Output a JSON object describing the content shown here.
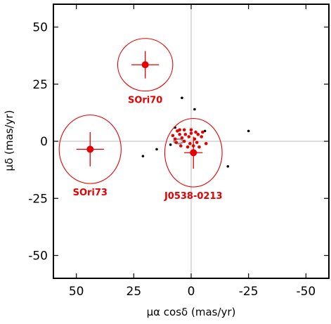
{
  "chart_data": {
    "type": "scatter",
    "title": "",
    "xlabel": "μα cosδ (mas/yr)",
    "ylabel": "μδ (mas/yr)",
    "xlim": [
      60,
      -60
    ],
    "ylim": [
      -60,
      60
    ],
    "x_inverted": true,
    "xticks": [
      50,
      25,
      0,
      -25,
      -50
    ],
    "yticks": [
      50,
      25,
      0,
      -25,
      -50
    ],
    "xtick_labels": [
      "50",
      "25",
      "0",
      "-25",
      "-50"
    ],
    "ytick_labels": [
      "50",
      "25",
      "0",
      "-25",
      "-50"
    ],
    "grid": false,
    "reference_lines": {
      "x": 0,
      "y": 0,
      "color": "#bbbbbb"
    },
    "colors": {
      "highlight": "#e60000",
      "background_points": "#000000",
      "ellipse": "#e60000",
      "small_ellipse": "#999999"
    },
    "highlighted_objects": [
      {
        "label": "SOri70",
        "x": 20,
        "y": 33.5,
        "xerr": 6,
        "yerr": 6,
        "ellipse_rx": 12,
        "ellipse_ry": 11.5
      },
      {
        "label": "SOri73",
        "x": 44,
        "y": -3.5,
        "xerr": 6,
        "yerr": 7.5,
        "ellipse_rx": 13.5,
        "ellipse_ry": 15
      },
      {
        "label": "J0538-0213",
        "x": -1,
        "y": -5,
        "xerr": 4,
        "yerr": 7,
        "ellipse_rx": 12.5,
        "ellipse_ry": 15
      }
    ],
    "gray_ellipse": {
      "x": 5.5,
      "y": 0,
      "rx": 2,
      "ry": 1
    },
    "cluster_points": [
      [
        6,
        4.5
      ],
      [
        5,
        5
      ],
      [
        3,
        5
      ],
      [
        0,
        5
      ],
      [
        -2,
        4
      ],
      [
        -5,
        4
      ],
      [
        8,
        2.5
      ],
      [
        5,
        3
      ],
      [
        2.5,
        3
      ],
      [
        0,
        3.5
      ],
      [
        -3,
        3
      ],
      [
        7,
        1
      ],
      [
        4,
        1.5
      ],
      [
        1,
        2
      ],
      [
        -1.5,
        1
      ],
      [
        -4.5,
        2
      ],
      [
        6.5,
        -0.5
      ],
      [
        3,
        0
      ],
      [
        0.5,
        -1
      ],
      [
        -2.5,
        -0.5
      ],
      [
        -6.5,
        -1
      ],
      [
        4.5,
        -2
      ],
      [
        1.5,
        -2.5
      ],
      [
        -1,
        -2
      ],
      [
        -3.5,
        -2.5
      ]
    ],
    "field_points": [
      [
        4,
        19
      ],
      [
        -1.5,
        14
      ],
      [
        -25,
        4.5
      ],
      [
        15,
        -3.5
      ],
      [
        21,
        -6.5
      ],
      [
        -16,
        -11
      ],
      [
        7,
        6
      ],
      [
        -6,
        4.5
      ],
      [
        9,
        -1.5
      ]
    ]
  }
}
